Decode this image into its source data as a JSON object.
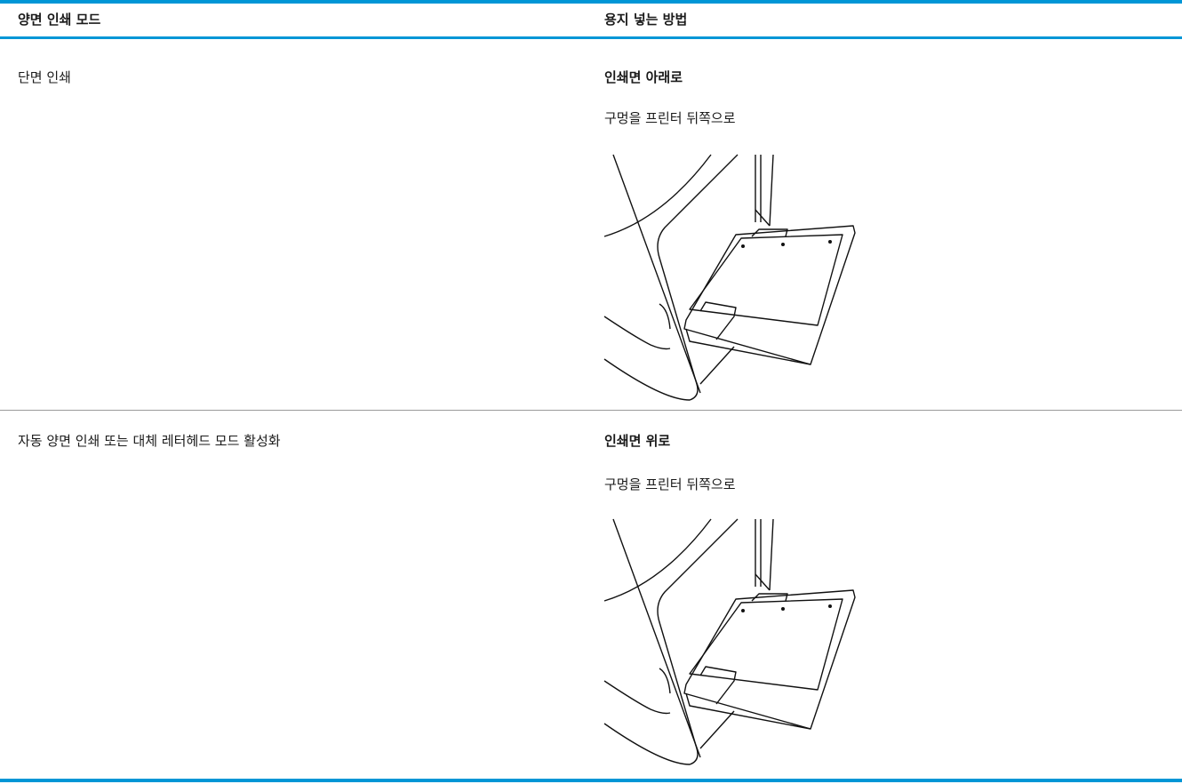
{
  "table": {
    "headers": [
      "양면 인쇄 모드",
      "용지 넣는 방법"
    ],
    "rows": [
      {
        "mode": "단면 인쇄",
        "orientation": "인쇄면 아래로",
        "instruction": "구멍을 프린터 뒤쪽으로"
      },
      {
        "mode": "자동 양면 인쇄 또는 대체 레터헤드 모드 활성화",
        "orientation": "인쇄면 위로",
        "instruction": "구멍을 프린터 뒤쪽으로"
      }
    ]
  }
}
